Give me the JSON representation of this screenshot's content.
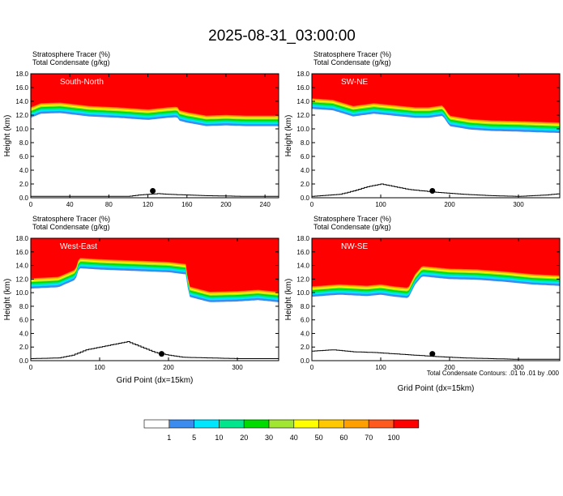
{
  "title": "2025-08-31_03:00:00",
  "xlabel": "Grid Point (dx=15km)",
  "ylabel": "Height (km)",
  "footnote": "Total Condensate Contours: .01 to .01 by .000",
  "colors": {
    "levels": [
      "#ffffff",
      "#3c8cf0",
      "#00e6ff",
      "#00e68c",
      "#00dc00",
      "#a0e632",
      "#ffff00",
      "#ffc800",
      "#ffa000",
      "#ff5a1e",
      "#ff0000"
    ],
    "ground": "#000000"
  },
  "legend": {
    "labels": [
      "1",
      "5",
      "10",
      "20",
      "30",
      "40",
      "50",
      "60",
      "70",
      "100"
    ]
  },
  "chart_data": [
    {
      "type": "heatmap",
      "panel": "South-North",
      "title_line1": "Stratosphere Tracer   (%)",
      "title_line2": "Total Condensate   (g/kg)",
      "ylabel": "Height (km)",
      "xlim": [
        0,
        254
      ],
      "ylim": [
        0,
        18
      ],
      "xticks": [
        "0",
        "40",
        "80",
        "120",
        "160",
        "200",
        "240"
      ],
      "yticks": [
        "0.0",
        "2.0",
        "4.0",
        "6.0",
        "8.0",
        "10.0",
        "12.0",
        "14.0",
        "16.0",
        "18.0"
      ],
      "tracer_base_km": [
        [
          0,
          13.2
        ],
        [
          10,
          13.8
        ],
        [
          30,
          13.9
        ],
        [
          60,
          13.4
        ],
        [
          90,
          13.2
        ],
        [
          120,
          12.9
        ],
        [
          140,
          13.2
        ],
        [
          150,
          13.3
        ],
        [
          152,
          12.8
        ],
        [
          160,
          12.5
        ],
        [
          180,
          12.0
        ],
        [
          200,
          12.1
        ],
        [
          220,
          12.0
        ],
        [
          254,
          12.0
        ]
      ],
      "point": [
        125,
        1.0
      ],
      "terrain_km": [
        [
          0,
          0.2
        ],
        [
          60,
          0.2
        ],
        [
          100,
          0.2
        ],
        [
          110,
          0.4
        ],
        [
          120,
          0.5
        ],
        [
          130,
          0.6
        ],
        [
          140,
          0.5
        ],
        [
          160,
          0.4
        ],
        [
          180,
          0.3
        ],
        [
          220,
          0.2
        ],
        [
          254,
          0.2
        ]
      ]
    },
    {
      "type": "heatmap",
      "panel": "SW-NE",
      "title_line1": "Stratosphere Tracer   (%)",
      "title_line2": "Total Condensate   (g/kg)",
      "ylabel": "Height (km)",
      "xlim": [
        0,
        360
      ],
      "ylim": [
        0,
        18
      ],
      "xticks": [
        "0",
        "100",
        "200",
        "300"
      ],
      "yticks": [
        "0.0",
        "2.0",
        "4.0",
        "6.0",
        "8.0",
        "10.0",
        "12.0",
        "14.0",
        "16.0",
        "18.0"
      ],
      "tracer_base_km": [
        [
          0,
          14.5
        ],
        [
          30,
          14.3
        ],
        [
          60,
          13.4
        ],
        [
          90,
          13.8
        ],
        [
          120,
          13.5
        ],
        [
          150,
          13.2
        ],
        [
          170,
          13.2
        ],
        [
          190,
          13.5
        ],
        [
          200,
          12.0
        ],
        [
          230,
          11.5
        ],
        [
          260,
          11.3
        ],
        [
          300,
          11.2
        ],
        [
          360,
          11.0
        ]
      ],
      "point": [
        175,
        1.0
      ],
      "terrain_km": [
        [
          0,
          0.2
        ],
        [
          40,
          0.5
        ],
        [
          60,
          1.0
        ],
        [
          80,
          1.6
        ],
        [
          100,
          2.0
        ],
        [
          120,
          1.6
        ],
        [
          140,
          1.2
        ],
        [
          160,
          1.0
        ],
        [
          180,
          0.8
        ],
        [
          220,
          0.5
        ],
        [
          260,
          0.3
        ],
        [
          300,
          0.2
        ],
        [
          340,
          0.4
        ],
        [
          360,
          0.6
        ]
      ]
    },
    {
      "type": "heatmap",
      "panel": "West-East",
      "title_line1": "Stratosphere Tracer   (%)",
      "title_line2": "Total Condensate   (g/kg)",
      "ylabel": "Height (km)",
      "xlim": [
        0,
        360
      ],
      "ylim": [
        0,
        18
      ],
      "xticks": [
        "0",
        "100",
        "200",
        "300"
      ],
      "yticks": [
        "0.0",
        "2.0",
        "4.0",
        "6.0",
        "8.0",
        "10.0",
        "12.0",
        "14.0",
        "16.0",
        "18.0"
      ],
      "tracer_base_km": [
        [
          0,
          12.2
        ],
        [
          40,
          12.4
        ],
        [
          65,
          13.5
        ],
        [
          70,
          15.2
        ],
        [
          100,
          15.0
        ],
        [
          150,
          14.8
        ],
        [
          200,
          14.6
        ],
        [
          225,
          14.3
        ],
        [
          230,
          11.0
        ],
        [
          260,
          10.2
        ],
        [
          300,
          10.3
        ],
        [
          330,
          10.5
        ],
        [
          360,
          10.2
        ]
      ],
      "point": [
        190,
        1.0
      ],
      "terrain_km": [
        [
          0,
          0.3
        ],
        [
          40,
          0.4
        ],
        [
          60,
          0.8
        ],
        [
          80,
          1.6
        ],
        [
          100,
          2.0
        ],
        [
          120,
          2.4
        ],
        [
          140,
          2.8
        ],
        [
          160,
          2.0
        ],
        [
          180,
          1.2
        ],
        [
          200,
          0.8
        ],
        [
          220,
          0.5
        ],
        [
          260,
          0.4
        ],
        [
          300,
          0.3
        ],
        [
          360,
          0.3
        ]
      ]
    },
    {
      "type": "heatmap",
      "panel": "NW-SE",
      "title_line1": "Stratosphere Tracer   (%)",
      "title_line2": "Total Condensate   (g/kg)",
      "ylabel": "Height (km)",
      "xlim": [
        0,
        360
      ],
      "ylim": [
        0,
        18
      ],
      "xticks": [
        "0",
        "100",
        "200",
        "300"
      ],
      "yticks": [
        "0.0",
        "2.0",
        "4.0",
        "6.0",
        "8.0",
        "10.0",
        "12.0",
        "14.0",
        "16.0",
        "18.0"
      ],
      "tracer_base_km": [
        [
          0,
          11.0
        ],
        [
          40,
          11.3
        ],
        [
          80,
          11.1
        ],
        [
          100,
          11.3
        ],
        [
          120,
          11.0
        ],
        [
          140,
          10.8
        ],
        [
          150,
          12.8
        ],
        [
          160,
          14.0
        ],
        [
          200,
          13.6
        ],
        [
          240,
          13.5
        ],
        [
          280,
          13.2
        ],
        [
          320,
          12.8
        ],
        [
          360,
          12.6
        ]
      ],
      "point": [
        175,
        1.0
      ],
      "terrain_km": [
        [
          0,
          1.4
        ],
        [
          30,
          1.6
        ],
        [
          60,
          1.3
        ],
        [
          90,
          1.2
        ],
        [
          120,
          1.0
        ],
        [
          150,
          0.8
        ],
        [
          180,
          0.6
        ],
        [
          220,
          0.4
        ],
        [
          260,
          0.3
        ],
        [
          300,
          0.2
        ],
        [
          360,
          0.2
        ]
      ]
    }
  ]
}
